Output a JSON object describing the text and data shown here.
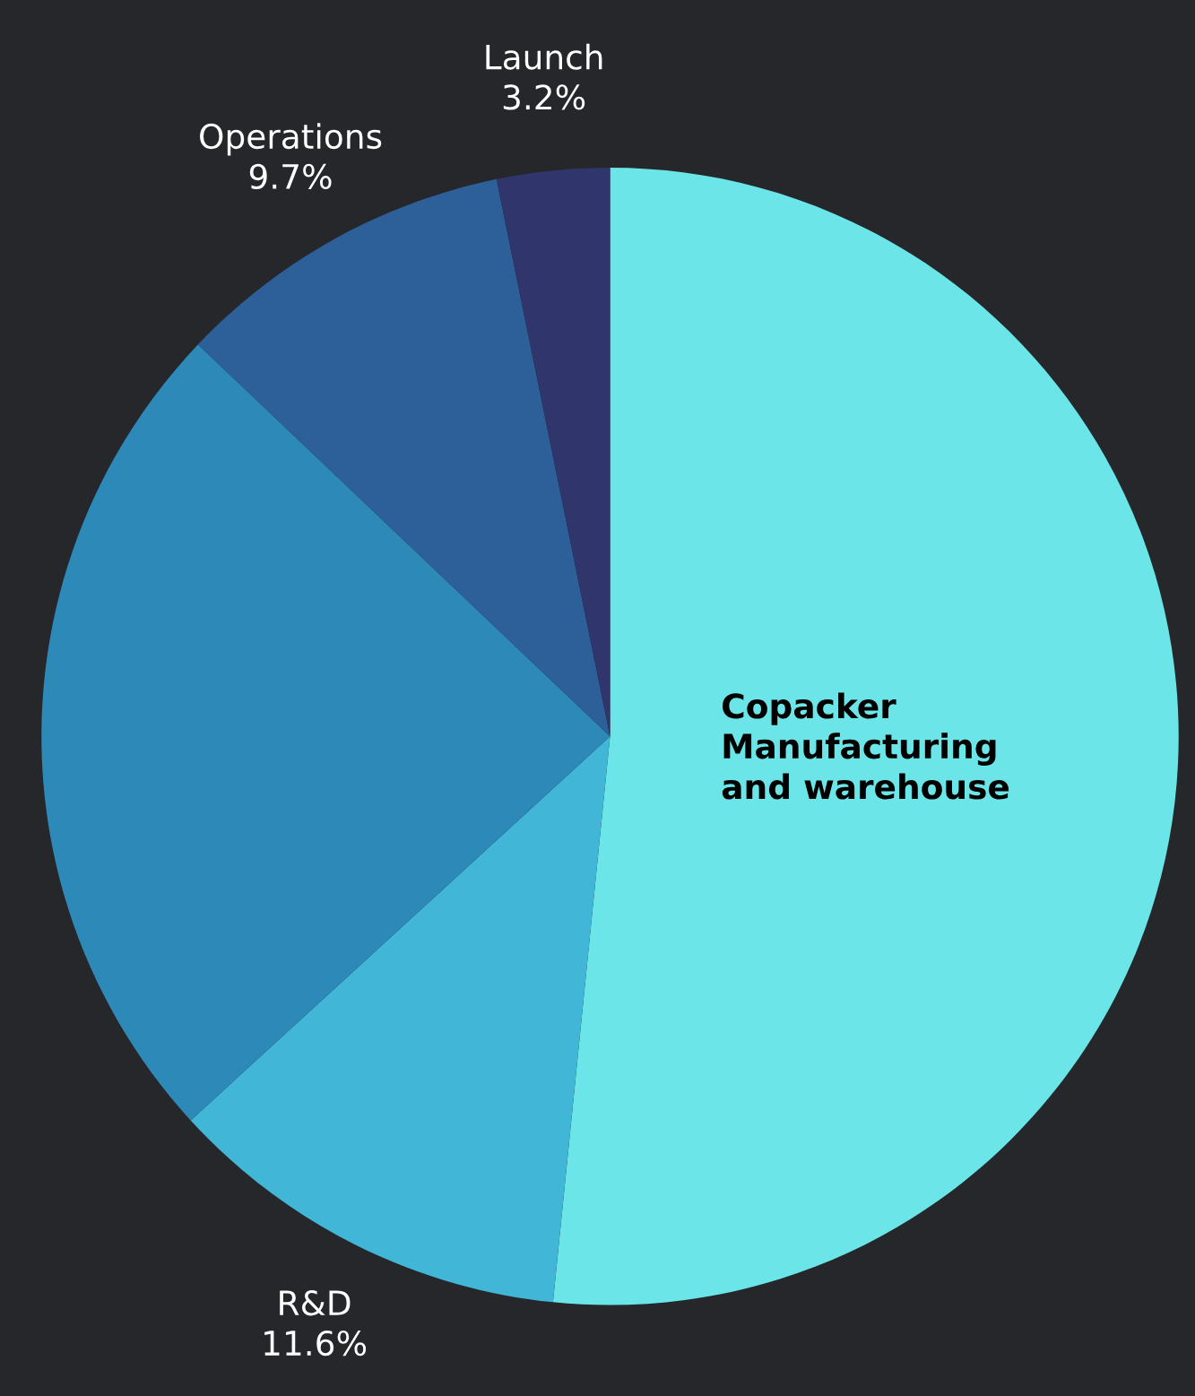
{
  "chart_data": {
    "type": "pie",
    "categories": [
      "Copacker\nManufacturing\nand warehouse",
      "R&D",
      null,
      "Operations",
      "Launch"
    ],
    "values": [
      51.6,
      11.6,
      23.9,
      9.7,
      3.2
    ],
    "value_labels": [
      null,
      "11.6%",
      null,
      "9.7%",
      "3.2%"
    ],
    "colors": [
      "#6be5e8",
      "#42b6d6",
      "#2d8ab8",
      "#2d6099",
      "#30356b"
    ],
    "legend": false
  }
}
